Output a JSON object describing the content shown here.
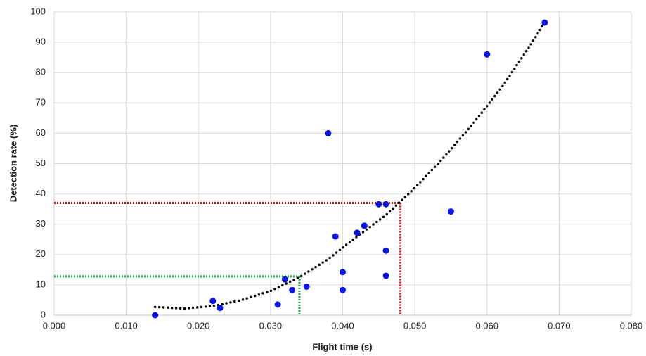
{
  "chart_data": {
    "type": "scatter",
    "xlabel": "Flight time (s)",
    "ylabel": "Detection rate (%)",
    "x": [
      0.014,
      0.022,
      0.023,
      0.031,
      0.032,
      0.033,
      0.035,
      0.038,
      0.039,
      0.04,
      0.04,
      0.042,
      0.043,
      0.045,
      0.046,
      0.046,
      0.046,
      0.055,
      0.06,
      0.068
    ],
    "values": [
      0,
      4.7,
      2.4,
      3.5,
      11.8,
      8.3,
      9.4,
      60,
      26,
      14.2,
      8.3,
      27.2,
      29.5,
      36.6,
      36.6,
      21.3,
      13,
      34.2,
      86,
      96.5
    ],
    "color": "#0a14e6",
    "trendline": {
      "x": [
        0.014,
        0.018,
        0.022,
        0.026,
        0.03,
        0.034,
        0.038,
        0.042,
        0.046,
        0.05,
        0.054,
        0.058,
        0.062,
        0.066,
        0.068
      ],
      "values": [
        2.7,
        2.2,
        3.0,
        5.0,
        8.0,
        12.5,
        18.5,
        26,
        33,
        42,
        52,
        63,
        75,
        89,
        96.5
      ],
      "color": "#000000"
    },
    "reference_lines": [
      {
        "x": 0.048,
        "y": 37,
        "color": "#e01010"
      },
      {
        "x": 0.034,
        "y": 12.8,
        "color": "#1aa83a"
      }
    ],
    "xlim": [
      0,
      0.08
    ],
    "ylim": [
      0,
      100
    ],
    "xticks": [
      {
        "value": 0,
        "label": "0.000"
      },
      {
        "value": 0.01,
        "label": "0.010"
      },
      {
        "value": 0.02,
        "label": "0.020"
      },
      {
        "value": 0.03,
        "label": "0.030"
      },
      {
        "value": 0.04,
        "label": "0.040"
      },
      {
        "value": 0.05,
        "label": "0.050"
      },
      {
        "value": 0.06,
        "label": "0.060"
      },
      {
        "value": 0.07,
        "label": "0.070"
      },
      {
        "value": 0.08,
        "label": "0.080"
      }
    ],
    "yticks": [
      0,
      10,
      20,
      30,
      40,
      50,
      60,
      70,
      80,
      90,
      100
    ],
    "grid": true
  }
}
